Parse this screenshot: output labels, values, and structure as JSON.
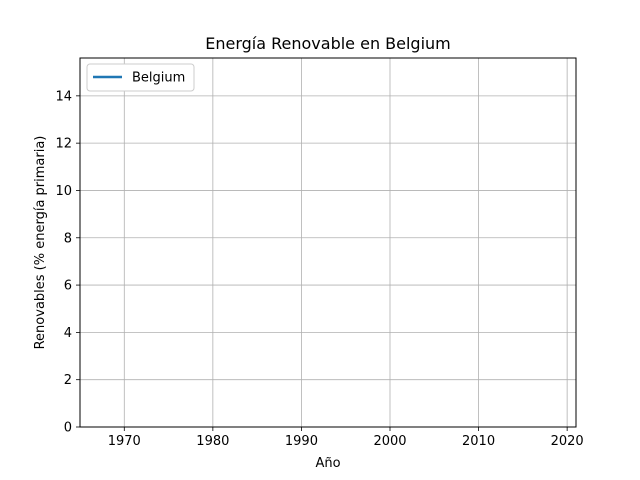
{
  "chart_data": {
    "type": "line",
    "title": "Energía Renovable en Belgium",
    "xlabel": "Año",
    "ylabel": "Renovables (% energía primaria)",
    "xlim": [
      1965,
      2021
    ],
    "ylim": [
      0,
      15.6
    ],
    "xticks": [
      1970,
      1980,
      1990,
      2000,
      2010,
      2020
    ],
    "yticks": [
      0,
      2,
      4,
      6,
      8,
      10,
      12,
      14
    ],
    "grid": true,
    "legend_position": "top-left",
    "series": [
      {
        "name": "Belgium",
        "color": "#1f77b4",
        "x": [],
        "y": []
      }
    ]
  }
}
